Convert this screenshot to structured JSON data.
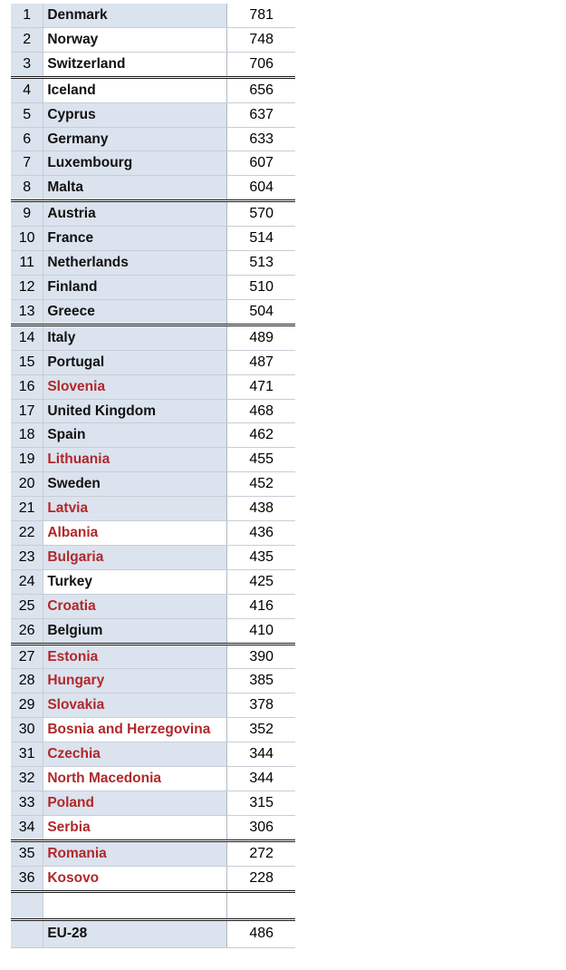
{
  "colors": {
    "highlight_name": "#b0282b",
    "cell_blue": "#dbe3ee"
  },
  "rows": [
    {
      "rank": "1",
      "country": "Denmark",
      "value": "781",
      "red": false,
      "blue": true,
      "thick": false
    },
    {
      "rank": "2",
      "country": "Norway",
      "value": "748",
      "red": false,
      "blue": false,
      "thick": false
    },
    {
      "rank": "3",
      "country": "Switzerland",
      "value": "706",
      "red": false,
      "blue": false,
      "thick": true
    },
    {
      "rank": "4",
      "country": "Iceland",
      "value": "656",
      "red": false,
      "blue": false,
      "thick": false
    },
    {
      "rank": "5",
      "country": "Cyprus",
      "value": "637",
      "red": false,
      "blue": true,
      "thick": false
    },
    {
      "rank": "6",
      "country": "Germany",
      "value": "633",
      "red": false,
      "blue": true,
      "thick": false
    },
    {
      "rank": "7",
      "country": "Luxembourg",
      "value": "607",
      "red": false,
      "blue": true,
      "thick": false
    },
    {
      "rank": "8",
      "country": "Malta",
      "value": "604",
      "red": false,
      "blue": true,
      "thick": true
    },
    {
      "rank": "9",
      "country": "Austria",
      "value": "570",
      "red": false,
      "blue": true,
      "thick": false
    },
    {
      "rank": "10",
      "country": "France",
      "value": "514",
      "red": false,
      "blue": true,
      "thick": false
    },
    {
      "rank": "11",
      "country": "Netherlands",
      "value": "513",
      "red": false,
      "blue": true,
      "thick": false
    },
    {
      "rank": "12",
      "country": "Finland",
      "value": "510",
      "red": false,
      "blue": true,
      "thick": false
    },
    {
      "rank": "13",
      "country": "Greece",
      "value": "504",
      "red": false,
      "blue": true,
      "thick": true
    },
    {
      "rank": "14",
      "country": "Italy",
      "value": "489",
      "red": false,
      "blue": true,
      "thick": false
    },
    {
      "rank": "15",
      "country": "Portugal",
      "value": "487",
      "red": false,
      "blue": true,
      "thick": false
    },
    {
      "rank": "16",
      "country": "Slovenia",
      "value": "471",
      "red": true,
      "blue": true,
      "thick": false
    },
    {
      "rank": "17",
      "country": "United Kingdom",
      "value": "468",
      "red": false,
      "blue": true,
      "thick": false
    },
    {
      "rank": "18",
      "country": "Spain",
      "value": "462",
      "red": false,
      "blue": true,
      "thick": false
    },
    {
      "rank": "19",
      "country": "Lithuania",
      "value": "455",
      "red": true,
      "blue": true,
      "thick": false
    },
    {
      "rank": "20",
      "country": "Sweden",
      "value": "452",
      "red": false,
      "blue": true,
      "thick": false
    },
    {
      "rank": "21",
      "country": "Latvia",
      "value": "438",
      "red": true,
      "blue": true,
      "thick": false
    },
    {
      "rank": "22",
      "country": "Albania",
      "value": "436",
      "red": true,
      "blue": false,
      "thick": false
    },
    {
      "rank": "23",
      "country": "Bulgaria",
      "value": "435",
      "red": true,
      "blue": true,
      "thick": false
    },
    {
      "rank": "24",
      "country": "Turkey",
      "value": "425",
      "red": false,
      "blue": false,
      "thick": false
    },
    {
      "rank": "25",
      "country": "Croatia",
      "value": "416",
      "red": true,
      "blue": true,
      "thick": false
    },
    {
      "rank": "26",
      "country": "Belgium",
      "value": "410",
      "red": false,
      "blue": true,
      "thick": true
    },
    {
      "rank": "27",
      "country": "Estonia",
      "value": "390",
      "red": true,
      "blue": true,
      "thick": false
    },
    {
      "rank": "28",
      "country": "Hungary",
      "value": "385",
      "red": true,
      "blue": true,
      "thick": false
    },
    {
      "rank": "29",
      "country": "Slovakia",
      "value": "378",
      "red": true,
      "blue": true,
      "thick": false
    },
    {
      "rank": "30",
      "country": "Bosnia and Herzegovina",
      "value": "352",
      "red": true,
      "blue": false,
      "thick": false
    },
    {
      "rank": "31",
      "country": "Czechia",
      "value": "344",
      "red": true,
      "blue": true,
      "thick": false
    },
    {
      "rank": "32",
      "country": "North Macedonia",
      "value": "344",
      "red": true,
      "blue": false,
      "thick": false
    },
    {
      "rank": "33",
      "country": "Poland",
      "value": "315",
      "red": true,
      "blue": true,
      "thick": false
    },
    {
      "rank": "34",
      "country": "Serbia",
      "value": "306",
      "red": true,
      "blue": false,
      "thick": true
    },
    {
      "rank": "35",
      "country": "Romania",
      "value": "272",
      "red": true,
      "blue": true,
      "thick": false
    },
    {
      "rank": "36",
      "country": "Kosovo",
      "value": "228",
      "red": true,
      "blue": false,
      "thick": true
    }
  ],
  "spacer": {
    "rank": "",
    "country": "",
    "value": ""
  },
  "total": {
    "rank": "",
    "country": "EU-28",
    "value": "486"
  }
}
